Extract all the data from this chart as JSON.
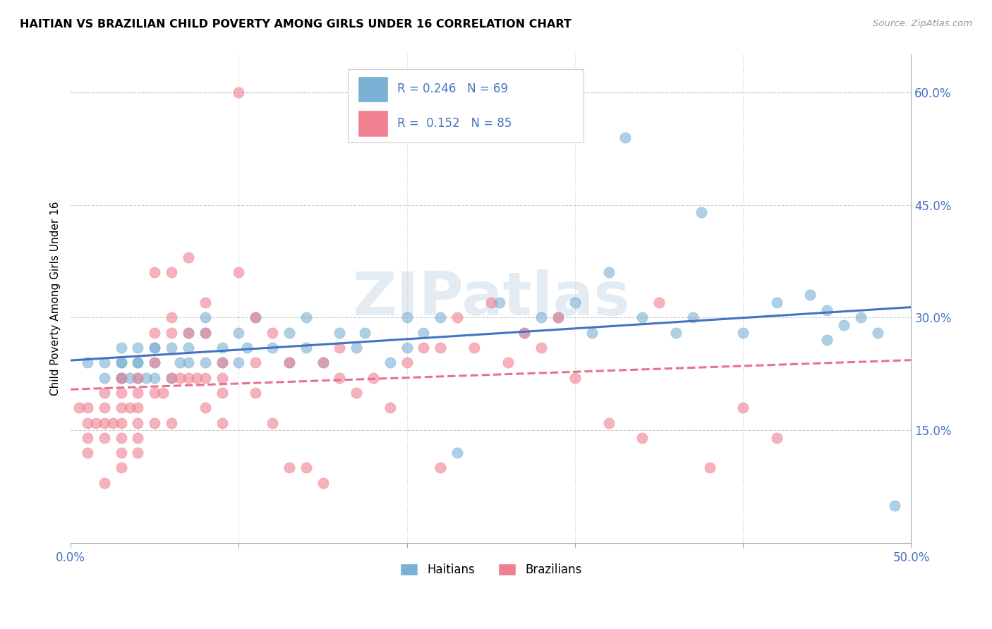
{
  "title": "HAITIAN VS BRAZILIAN CHILD POVERTY AMONG GIRLS UNDER 16 CORRELATION CHART",
  "source": "Source: ZipAtlas.com",
  "ylabel": "Child Poverty Among Girls Under 16",
  "xlim": [
    0.0,
    0.5
  ],
  "ylim": [
    0.0,
    0.65
  ],
  "xtick_positions": [
    0.0,
    0.1,
    0.2,
    0.3,
    0.4,
    0.5
  ],
  "xtick_labels_show": [
    "0.0%",
    "",
    "",
    "",
    "",
    "50.0%"
  ],
  "yticks": [
    0.15,
    0.3,
    0.45,
    0.6
  ],
  "ytick_labels": [
    "15.0%",
    "30.0%",
    "45.0%",
    "60.0%"
  ],
  "haitian_color": "#7bafd4",
  "brazilian_color": "#f08090",
  "haitian_line_color": "#4472c4",
  "brazilian_line_color": "#e87090",
  "haitian_R": 0.246,
  "haitian_N": 69,
  "brazilian_R": 0.152,
  "brazilian_N": 85,
  "legend_text_color": "#4472c4",
  "haitian_scatter_x": [
    0.01,
    0.02,
    0.02,
    0.03,
    0.03,
    0.03,
    0.03,
    0.03,
    0.035,
    0.04,
    0.04,
    0.04,
    0.04,
    0.045,
    0.05,
    0.05,
    0.05,
    0.05,
    0.06,
    0.06,
    0.065,
    0.07,
    0.07,
    0.07,
    0.08,
    0.08,
    0.08,
    0.09,
    0.09,
    0.1,
    0.1,
    0.105,
    0.11,
    0.12,
    0.13,
    0.13,
    0.14,
    0.14,
    0.15,
    0.16,
    0.17,
    0.175,
    0.19,
    0.2,
    0.2,
    0.21,
    0.22,
    0.23,
    0.255,
    0.27,
    0.28,
    0.29,
    0.3,
    0.31,
    0.32,
    0.33,
    0.34,
    0.36,
    0.37,
    0.375,
    0.4,
    0.42,
    0.44,
    0.45,
    0.46,
    0.47,
    0.48,
    0.49,
    0.45
  ],
  "haitian_scatter_y": [
    0.24,
    0.24,
    0.22,
    0.22,
    0.24,
    0.24,
    0.22,
    0.26,
    0.22,
    0.24,
    0.22,
    0.24,
    0.26,
    0.22,
    0.22,
    0.24,
    0.26,
    0.26,
    0.22,
    0.26,
    0.24,
    0.24,
    0.26,
    0.28,
    0.24,
    0.28,
    0.3,
    0.24,
    0.26,
    0.24,
    0.28,
    0.26,
    0.3,
    0.26,
    0.24,
    0.28,
    0.26,
    0.3,
    0.24,
    0.28,
    0.26,
    0.28,
    0.24,
    0.26,
    0.3,
    0.28,
    0.3,
    0.12,
    0.32,
    0.28,
    0.3,
    0.3,
    0.32,
    0.28,
    0.36,
    0.54,
    0.3,
    0.28,
    0.3,
    0.44,
    0.28,
    0.32,
    0.33,
    0.31,
    0.29,
    0.3,
    0.28,
    0.05,
    0.27
  ],
  "brazilian_scatter_x": [
    0.005,
    0.01,
    0.01,
    0.01,
    0.01,
    0.015,
    0.02,
    0.02,
    0.02,
    0.02,
    0.02,
    0.025,
    0.03,
    0.03,
    0.03,
    0.03,
    0.03,
    0.03,
    0.03,
    0.035,
    0.04,
    0.04,
    0.04,
    0.04,
    0.04,
    0.04,
    0.05,
    0.05,
    0.05,
    0.05,
    0.05,
    0.055,
    0.06,
    0.06,
    0.06,
    0.06,
    0.06,
    0.065,
    0.07,
    0.07,
    0.07,
    0.075,
    0.08,
    0.08,
    0.08,
    0.08,
    0.09,
    0.09,
    0.09,
    0.09,
    0.1,
    0.1,
    0.11,
    0.11,
    0.11,
    0.12,
    0.12,
    0.13,
    0.13,
    0.14,
    0.15,
    0.15,
    0.16,
    0.16,
    0.17,
    0.18,
    0.19,
    0.2,
    0.21,
    0.22,
    0.22,
    0.23,
    0.24,
    0.25,
    0.26,
    0.27,
    0.28,
    0.29,
    0.3,
    0.32,
    0.34,
    0.35,
    0.38,
    0.4,
    0.42
  ],
  "brazilian_scatter_y": [
    0.18,
    0.18,
    0.16,
    0.14,
    0.12,
    0.16,
    0.2,
    0.18,
    0.16,
    0.14,
    0.08,
    0.16,
    0.22,
    0.2,
    0.18,
    0.16,
    0.14,
    0.12,
    0.1,
    0.18,
    0.22,
    0.2,
    0.18,
    0.16,
    0.14,
    0.12,
    0.36,
    0.28,
    0.24,
    0.2,
    0.16,
    0.2,
    0.36,
    0.3,
    0.28,
    0.22,
    0.16,
    0.22,
    0.38,
    0.28,
    0.22,
    0.22,
    0.32,
    0.28,
    0.22,
    0.18,
    0.24,
    0.22,
    0.2,
    0.16,
    0.6,
    0.36,
    0.3,
    0.24,
    0.2,
    0.28,
    0.16,
    0.24,
    0.1,
    0.1,
    0.24,
    0.08,
    0.26,
    0.22,
    0.2,
    0.22,
    0.18,
    0.24,
    0.26,
    0.26,
    0.1,
    0.3,
    0.26,
    0.32,
    0.24,
    0.28,
    0.26,
    0.3,
    0.22,
    0.16,
    0.14,
    0.32,
    0.1,
    0.18,
    0.14
  ],
  "background_color": "#ffffff",
  "grid_color": "#cccccc",
  "axis_color": "#4472c4",
  "watermark": "ZIPatlas"
}
